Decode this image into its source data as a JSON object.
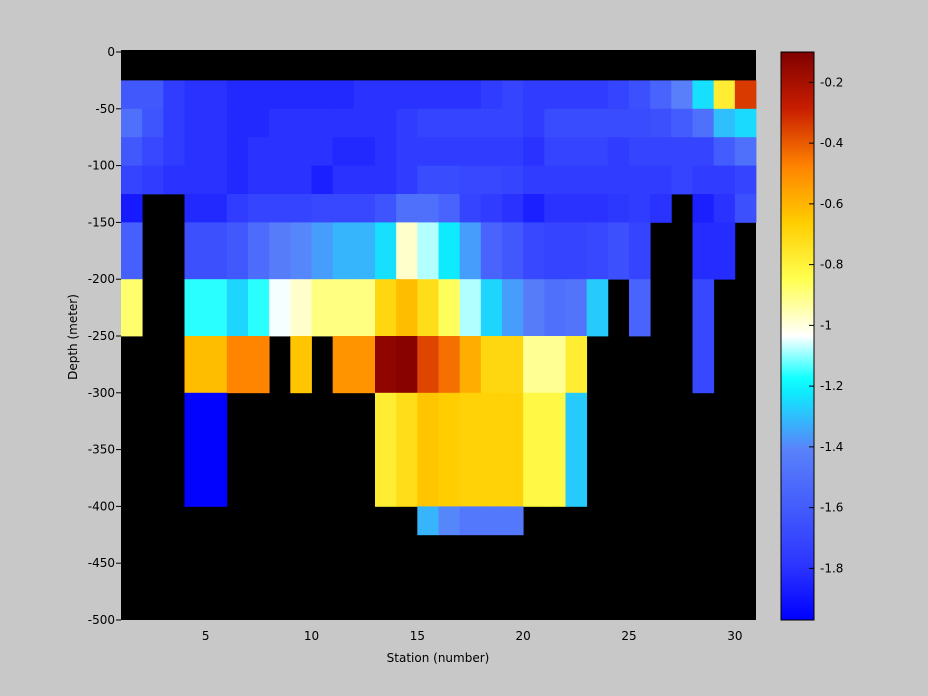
{
  "chart_data": {
    "type": "heatmap",
    "title": "",
    "xlabel": "Station (number)",
    "ylabel": "Depth (meter)",
    "xlim": [
      1,
      31
    ],
    "ylim": [
      -500,
      0
    ],
    "xticks": [
      5,
      10,
      15,
      20,
      25,
      30
    ],
    "yticks": [
      0,
      -50,
      -100,
      -150,
      -200,
      -250,
      -300,
      -350,
      -400,
      -450,
      -500
    ],
    "colorbar": {
      "range": [
        -1.97,
        -0.1
      ],
      "ticks": [
        -0.2,
        -0.4,
        -0.6,
        -0.8,
        -1,
        -1.2,
        -1.4,
        -1.6,
        -1.8
      ],
      "colormap": "jet",
      "placement": "right"
    },
    "nodata_color": "#000000",
    "background_color": "#c8c8c8",
    "cell_depths": [
      0,
      -25,
      -50,
      -75,
      -100,
      -125,
      -150,
      -200,
      -250,
      -300,
      -400
    ],
    "grid": [
      [
        null,
        null,
        null,
        null,
        null,
        null,
        null,
        null,
        null,
        null,
        null,
        null,
        null,
        null,
        null,
        null,
        null,
        null,
        null,
        null,
        null,
        null,
        null,
        null,
        null,
        null,
        null,
        null,
        null,
        null
      ],
      [
        -1.62,
        -1.62,
        -1.76,
        -1.8,
        -1.8,
        -1.83,
        -1.83,
        -1.83,
        -1.83,
        -1.83,
        -1.83,
        -1.8,
        -1.8,
        -1.8,
        -1.8,
        -1.8,
        -1.8,
        -1.76,
        -1.72,
        -1.76,
        -1.76,
        -1.76,
        -1.76,
        -1.72,
        -1.66,
        -1.56,
        -1.42,
        -1.24,
        -0.78,
        -0.34
      ],
      [
        -1.5,
        -1.64,
        -1.76,
        -1.8,
        -1.8,
        -1.83,
        -1.83,
        -1.8,
        -1.8,
        -1.8,
        -1.8,
        -1.8,
        -1.8,
        -1.76,
        -1.72,
        -1.72,
        -1.72,
        -1.72,
        -1.72,
        -1.76,
        -1.68,
        -1.68,
        -1.68,
        -1.68,
        -1.68,
        -1.66,
        -1.6,
        -1.5,
        -1.3,
        -1.25
      ],
      [
        -1.62,
        -1.7,
        -1.76,
        -1.8,
        -1.8,
        -1.83,
        -1.8,
        -1.8,
        -1.8,
        -1.8,
        -1.83,
        -1.83,
        -1.8,
        -1.76,
        -1.76,
        -1.76,
        -1.76,
        -1.76,
        -1.76,
        -1.8,
        -1.72,
        -1.72,
        -1.72,
        -1.76,
        -1.72,
        -1.72,
        -1.72,
        -1.72,
        -1.6,
        -1.5
      ],
      [
        -1.72,
        -1.76,
        -1.8,
        -1.8,
        -1.8,
        -1.83,
        -1.8,
        -1.8,
        -1.8,
        -1.86,
        -1.8,
        -1.8,
        -1.8,
        -1.76,
        -1.68,
        -1.68,
        -1.7,
        -1.7,
        -1.72,
        -1.76,
        -1.76,
        -1.76,
        -1.76,
        -1.76,
        -1.76,
        -1.76,
        -1.72,
        -1.76,
        -1.76,
        -1.72
      ],
      [
        -1.88,
        null,
        null,
        -1.83,
        -1.83,
        -1.76,
        -1.72,
        -1.72,
        -1.72,
        -1.7,
        -1.7,
        -1.7,
        -1.64,
        -1.5,
        -1.5,
        -1.56,
        -1.72,
        -1.76,
        -1.8,
        -1.86,
        -1.8,
        -1.8,
        -1.8,
        -1.78,
        -1.76,
        -1.8,
        null,
        -1.86,
        -1.8,
        -1.66
      ],
      [
        -1.58,
        null,
        null,
        -1.66,
        -1.66,
        -1.62,
        -1.52,
        -1.44,
        -1.4,
        -1.36,
        -1.32,
        -1.32,
        -1.24,
        -0.98,
        -1.08,
        -1.22,
        -1.36,
        -1.56,
        -1.62,
        -1.7,
        -1.72,
        -1.72,
        -1.7,
        -1.66,
        -1.72,
        null,
        null,
        -1.82,
        -1.82,
        null
      ],
      [
        -0.88,
        null,
        null,
        -1.16,
        -1.16,
        -1.26,
        -1.16,
        -1.04,
        -0.98,
        -0.9,
        -0.9,
        -0.9,
        -0.7,
        -0.62,
        -0.72,
        -0.86,
        -1.08,
        -1.26,
        -1.36,
        -1.44,
        -1.5,
        -1.48,
        -1.28,
        null,
        -1.56,
        null,
        null,
        -1.7,
        null,
        null
      ],
      [
        null,
        null,
        null,
        -0.62,
        -0.62,
        -0.48,
        -0.48,
        null,
        -0.64,
        null,
        -0.52,
        -0.52,
        -0.14,
        -0.12,
        -0.36,
        -0.44,
        -0.58,
        -0.7,
        -0.7,
        -0.92,
        -0.92,
        -0.78,
        null,
        null,
        null,
        null,
        null,
        -1.7,
        null,
        null
      ],
      [
        null,
        null,
        null,
        -1.96,
        -1.96,
        null,
        null,
        null,
        null,
        null,
        null,
        null,
        -0.78,
        -0.72,
        -0.64,
        -0.66,
        -0.68,
        -0.68,
        -0.68,
        -0.82,
        -0.82,
        -1.28,
        null,
        null,
        null,
        null,
        null,
        null,
        null,
        null
      ],
      [
        null,
        null,
        null,
        null,
        null,
        null,
        null,
        null,
        null,
        null,
        null,
        null,
        null,
        null,
        -1.32,
        -1.4,
        -1.46,
        -1.46,
        -1.46,
        null,
        null,
        null,
        null,
        null,
        null,
        null,
        null,
        null,
        null,
        null
      ]
    ]
  }
}
